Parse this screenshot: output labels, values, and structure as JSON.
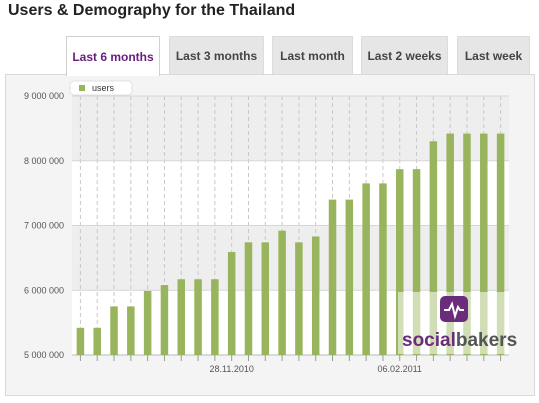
{
  "page": {
    "title": "Users & Demography for the Thailand"
  },
  "tabs": [
    {
      "label": "Last 6 months",
      "active": true
    },
    {
      "label": "Last 3 months",
      "active": false
    },
    {
      "label": "Last month",
      "active": false
    },
    {
      "label": "Last 2 weeks",
      "active": false
    },
    {
      "label": "Last week",
      "active": false
    }
  ],
  "watermark": {
    "brand_a": "social",
    "brand_b": "bakers",
    "color_a": "#6b2d7b",
    "color_b": "#555555",
    "icon": "socialbakers-logo-icon"
  },
  "colors": {
    "bar": "#98b45c",
    "active_tab_text": "#6a1b7f"
  },
  "chart_data": {
    "type": "bar",
    "title": "",
    "xlabel": "",
    "ylabel": "",
    "ylim": [
      5000000,
      9000000
    ],
    "yticks": [
      {
        "value": 5000000,
        "label": "5 000 000"
      },
      {
        "value": 6000000,
        "label": "6 000 000"
      },
      {
        "value": 7000000,
        "label": "7 000 000"
      },
      {
        "value": 8000000,
        "label": "8 000 000"
      },
      {
        "value": 9000000,
        "label": "9 000 000"
      }
    ],
    "xtick_labels": [
      {
        "index": 9,
        "label": "28.11.2010"
      },
      {
        "index": 19,
        "label": "06.02.2011"
      }
    ],
    "legend": {
      "position": "top-left",
      "entries": [
        "users"
      ]
    },
    "grid": true,
    "series": [
      {
        "name": "users",
        "values": [
          5420000,
          5420000,
          5750000,
          5750000,
          5990000,
          6080000,
          6170000,
          6170000,
          6170000,
          6590000,
          6740000,
          6740000,
          6920000,
          6740000,
          6830000,
          7400000,
          7400000,
          7650000,
          7650000,
          7870000,
          7870000,
          8300000,
          8420000,
          8420000,
          8420000,
          8420000
        ]
      }
    ]
  }
}
